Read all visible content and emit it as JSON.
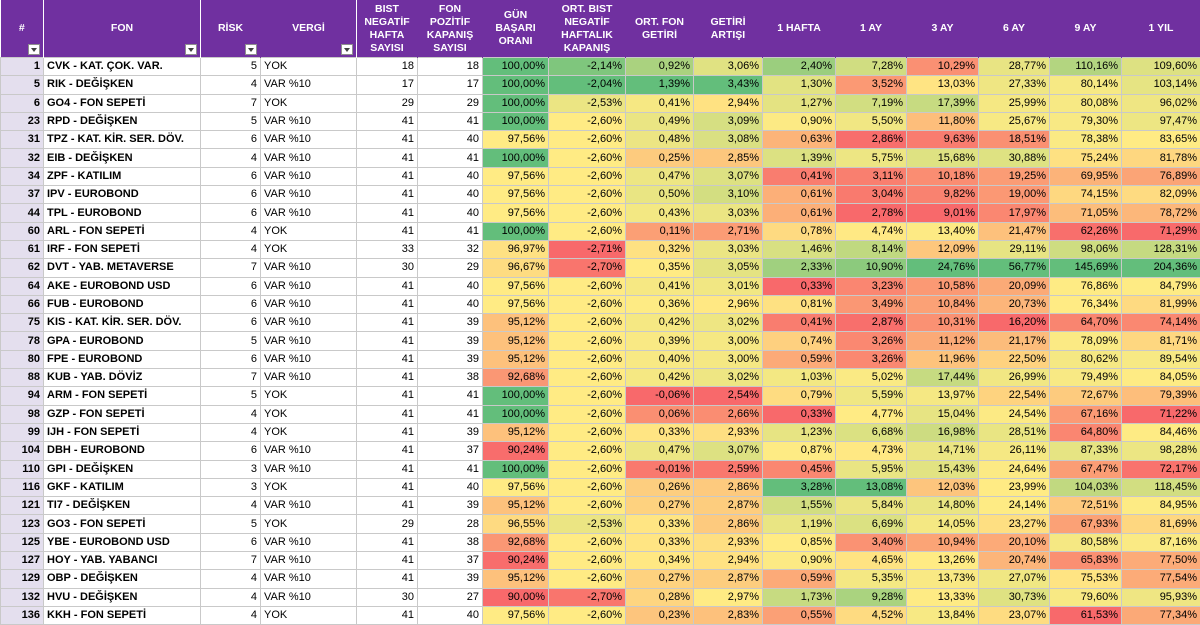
{
  "headers": {
    "idx": "#",
    "fon": "FON",
    "risk": "RİSK",
    "vergi": "VERGİ",
    "bist_neg": "BIST NEGATİF HAFTA SAYISI",
    "fon_poz": "FON POZİTİF KAPANIŞ SAYISI",
    "gun_basari": "GÜN BAŞARI ORANI",
    "ort_bist": "ORT. BIST NEGATİF HAFTALIK KAPANIŞ",
    "ort_fon": "ORT. FON GETİRİ",
    "getiri_artisi": "GETİRİ ARTIŞI",
    "h1": "1 HAFTA",
    "a1": "1 AY",
    "a3": "3 AY",
    "a6": "6 AY",
    "a9": "9 AY",
    "y1": "1 YIL"
  },
  "colors": {
    "header_bg": "#7030a0",
    "index_bg": "#e4dfee",
    "scale_low": "#f8696b",
    "scale_mid": "#ffeb84",
    "scale_high": "#63be7b"
  },
  "rows": [
    {
      "idx": "1",
      "fon": "CVK - KAT. ÇOK. VAR.",
      "risk": "5",
      "vergi": "YOK",
      "bist_neg": "18",
      "fon_poz": "18",
      "gun_basari": "100,00%",
      "ort_bist": "-2,14%",
      "ort_fon": "0,92%",
      "getiri_artisi": "3,06%",
      "h1": "2,40%",
      "a1": "7,28%",
      "a3": "10,29%",
      "a6": "28,77%",
      "a9": "110,16%",
      "y1": "109,60%"
    },
    {
      "idx": "5",
      "fon": "RIK - DEĞİŞKEN",
      "risk": "4",
      "vergi": "VAR %10",
      "bist_neg": "17",
      "fon_poz": "17",
      "gun_basari": "100,00%",
      "ort_bist": "-2,04%",
      "ort_fon": "1,39%",
      "getiri_artisi": "3,43%",
      "h1": "1,30%",
      "a1": "3,52%",
      "a3": "13,03%",
      "a6": "27,33%",
      "a9": "80,14%",
      "y1": "103,14%"
    },
    {
      "idx": "6",
      "fon": "GO4 - FON SEPETİ",
      "risk": "7",
      "vergi": "YOK",
      "bist_neg": "29",
      "fon_poz": "29",
      "gun_basari": "100,00%",
      "ort_bist": "-2,53%",
      "ort_fon": "0,41%",
      "getiri_artisi": "2,94%",
      "h1": "1,27%",
      "a1": "7,19%",
      "a3": "17,39%",
      "a6": "25,99%",
      "a9": "80,08%",
      "y1": "96,02%"
    },
    {
      "idx": "23",
      "fon": "RPD - DEĞİŞKEN",
      "risk": "5",
      "vergi": "VAR %10",
      "bist_neg": "41",
      "fon_poz": "41",
      "gun_basari": "100,00%",
      "ort_bist": "-2,60%",
      "ort_fon": "0,49%",
      "getiri_artisi": "3,09%",
      "h1": "0,90%",
      "a1": "5,50%",
      "a3": "11,80%",
      "a6": "25,67%",
      "a9": "79,30%",
      "y1": "97,47%"
    },
    {
      "idx": "31",
      "fon": "TPZ - KAT. KİR. SER. DÖV.",
      "risk": "6",
      "vergi": "VAR %10",
      "bist_neg": "41",
      "fon_poz": "40",
      "gun_basari": "97,56%",
      "ort_bist": "-2,60%",
      "ort_fon": "0,48%",
      "getiri_artisi": "3,08%",
      "h1": "0,63%",
      "a1": "2,86%",
      "a3": "9,63%",
      "a6": "18,51%",
      "a9": "78,38%",
      "y1": "83,65%"
    },
    {
      "idx": "32",
      "fon": "EIB - DEĞİŞKEN",
      "risk": "4",
      "vergi": "VAR %10",
      "bist_neg": "41",
      "fon_poz": "41",
      "gun_basari": "100,00%",
      "ort_bist": "-2,60%",
      "ort_fon": "0,25%",
      "getiri_artisi": "2,85%",
      "h1": "1,39%",
      "a1": "5,75%",
      "a3": "15,68%",
      "a6": "30,88%",
      "a9": "75,24%",
      "y1": "81,78%"
    },
    {
      "idx": "34",
      "fon": "ZPF - KATILIM",
      "risk": "6",
      "vergi": "VAR %10",
      "bist_neg": "41",
      "fon_poz": "40",
      "gun_basari": "97,56%",
      "ort_bist": "-2,60%",
      "ort_fon": "0,47%",
      "getiri_artisi": "3,07%",
      "h1": "0,41%",
      "a1": "3,11%",
      "a3": "10,18%",
      "a6": "19,25%",
      "a9": "69,95%",
      "y1": "76,89%"
    },
    {
      "idx": "37",
      "fon": "IPV - EUROBOND",
      "risk": "6",
      "vergi": "VAR %10",
      "bist_neg": "41",
      "fon_poz": "40",
      "gun_basari": "97,56%",
      "ort_bist": "-2,60%",
      "ort_fon": "0,50%",
      "getiri_artisi": "3,10%",
      "h1": "0,61%",
      "a1": "3,04%",
      "a3": "9,82%",
      "a6": "19,00%",
      "a9": "74,15%",
      "y1": "82,09%"
    },
    {
      "idx": "44",
      "fon": "TPL - EUROBOND",
      "risk": "6",
      "vergi": "VAR %10",
      "bist_neg": "41",
      "fon_poz": "40",
      "gun_basari": "97,56%",
      "ort_bist": "-2,60%",
      "ort_fon": "0,43%",
      "getiri_artisi": "3,03%",
      "h1": "0,61%",
      "a1": "2,78%",
      "a3": "9,01%",
      "a6": "17,97%",
      "a9": "71,05%",
      "y1": "78,72%"
    },
    {
      "idx": "60",
      "fon": "ARL - FON SEPETİ",
      "risk": "4",
      "vergi": "YOK",
      "bist_neg": "41",
      "fon_poz": "41",
      "gun_basari": "100,00%",
      "ort_bist": "-2,60%",
      "ort_fon": "0,11%",
      "getiri_artisi": "2,71%",
      "h1": "0,78%",
      "a1": "4,74%",
      "a3": "13,40%",
      "a6": "21,47%",
      "a9": "62,26%",
      "y1": "71,29%"
    },
    {
      "idx": "61",
      "fon": "IRF - FON SEPETİ",
      "risk": "4",
      "vergi": "YOK",
      "bist_neg": "33",
      "fon_poz": "32",
      "gun_basari": "96,97%",
      "ort_bist": "-2,71%",
      "ort_fon": "0,32%",
      "getiri_artisi": "3,03%",
      "h1": "1,46%",
      "a1": "8,14%",
      "a3": "12,09%",
      "a6": "29,11%",
      "a9": "98,06%",
      "y1": "128,31%"
    },
    {
      "idx": "62",
      "fon": "DVT - YAB. METAVERSE",
      "risk": "7",
      "vergi": "VAR %10",
      "bist_neg": "30",
      "fon_poz": "29",
      "gun_basari": "96,67%",
      "ort_bist": "-2,70%",
      "ort_fon": "0,35%",
      "getiri_artisi": "3,05%",
      "h1": "2,33%",
      "a1": "10,90%",
      "a3": "24,76%",
      "a6": "56,77%",
      "a9": "145,69%",
      "y1": "204,36%"
    },
    {
      "idx": "64",
      "fon": "AKE - EUROBOND USD",
      "risk": "6",
      "vergi": "VAR %10",
      "bist_neg": "41",
      "fon_poz": "40",
      "gun_basari": "97,56%",
      "ort_bist": "-2,60%",
      "ort_fon": "0,41%",
      "getiri_artisi": "3,01%",
      "h1": "0,33%",
      "a1": "3,23%",
      "a3": "10,58%",
      "a6": "20,09%",
      "a9": "76,86%",
      "y1": "84,79%"
    },
    {
      "idx": "66",
      "fon": "FUB - EUROBOND",
      "risk": "6",
      "vergi": "VAR %10",
      "bist_neg": "41",
      "fon_poz": "40",
      "gun_basari": "97,56%",
      "ort_bist": "-2,60%",
      "ort_fon": "0,36%",
      "getiri_artisi": "2,96%",
      "h1": "0,81%",
      "a1": "3,49%",
      "a3": "10,84%",
      "a6": "20,73%",
      "a9": "76,34%",
      "y1": "81,99%"
    },
    {
      "idx": "75",
      "fon": "KIS - KAT. KİR. SER. DÖV.",
      "risk": "6",
      "vergi": "VAR %10",
      "bist_neg": "41",
      "fon_poz": "39",
      "gun_basari": "95,12%",
      "ort_bist": "-2,60%",
      "ort_fon": "0,42%",
      "getiri_artisi": "3,02%",
      "h1": "0,41%",
      "a1": "2,87%",
      "a3": "10,31%",
      "a6": "16,20%",
      "a9": "64,70%",
      "y1": "74,14%"
    },
    {
      "idx": "78",
      "fon": "GPA - EUROBOND",
      "risk": "5",
      "vergi": "VAR %10",
      "bist_neg": "41",
      "fon_poz": "39",
      "gun_basari": "95,12%",
      "ort_bist": "-2,60%",
      "ort_fon": "0,39%",
      "getiri_artisi": "3,00%",
      "h1": "0,74%",
      "a1": "3,26%",
      "a3": "11,12%",
      "a6": "21,17%",
      "a9": "78,09%",
      "y1": "81,71%"
    },
    {
      "idx": "80",
      "fon": "FPE - EUROBOND",
      "risk": "6",
      "vergi": "VAR %10",
      "bist_neg": "41",
      "fon_poz": "39",
      "gun_basari": "95,12%",
      "ort_bist": "-2,60%",
      "ort_fon": "0,40%",
      "getiri_artisi": "3,00%",
      "h1": "0,59%",
      "a1": "3,26%",
      "a3": "11,96%",
      "a6": "22,50%",
      "a9": "80,62%",
      "y1": "89,54%"
    },
    {
      "idx": "88",
      "fon": "KUB - YAB. DÖVİZ",
      "risk": "7",
      "vergi": "VAR %10",
      "bist_neg": "41",
      "fon_poz": "38",
      "gun_basari": "92,68%",
      "ort_bist": "-2,60%",
      "ort_fon": "0,42%",
      "getiri_artisi": "3,02%",
      "h1": "1,03%",
      "a1": "5,02%",
      "a3": "17,44%",
      "a6": "26,99%",
      "a9": "79,49%",
      "y1": "84,05%"
    },
    {
      "idx": "94",
      "fon": "ARM - FON SEPETİ",
      "risk": "5",
      "vergi": "YOK",
      "bist_neg": "41",
      "fon_poz": "41",
      "gun_basari": "100,00%",
      "ort_bist": "-2,60%",
      "ort_fon": "-0,06%",
      "getiri_artisi": "2,54%",
      "h1": "0,79%",
      "a1": "5,59%",
      "a3": "13,97%",
      "a6": "22,54%",
      "a9": "72,67%",
      "y1": "79,39%"
    },
    {
      "idx": "98",
      "fon": "GZP - FON SEPETİ",
      "risk": "4",
      "vergi": "YOK",
      "bist_neg": "41",
      "fon_poz": "41",
      "gun_basari": "100,00%",
      "ort_bist": "-2,60%",
      "ort_fon": "0,06%",
      "getiri_artisi": "2,66%",
      "h1": "0,33%",
      "a1": "4,77%",
      "a3": "15,04%",
      "a6": "24,54%",
      "a9": "67,16%",
      "y1": "71,22%"
    },
    {
      "idx": "99",
      "fon": "IJH - FON SEPETİ",
      "risk": "4",
      "vergi": "YOK",
      "bist_neg": "41",
      "fon_poz": "39",
      "gun_basari": "95,12%",
      "ort_bist": "-2,60%",
      "ort_fon": "0,33%",
      "getiri_artisi": "2,93%",
      "h1": "1,23%",
      "a1": "6,68%",
      "a3": "16,98%",
      "a6": "28,51%",
      "a9": "64,80%",
      "y1": "84,46%"
    },
    {
      "idx": "104",
      "fon": "DBH - EUROBOND",
      "risk": "6",
      "vergi": "VAR %10",
      "bist_neg": "41",
      "fon_poz": "37",
      "gun_basari": "90,24%",
      "ort_bist": "-2,60%",
      "ort_fon": "0,47%",
      "getiri_artisi": "3,07%",
      "h1": "0,87%",
      "a1": "4,73%",
      "a3": "14,71%",
      "a6": "26,11%",
      "a9": "87,33%",
      "y1": "98,28%"
    },
    {
      "idx": "110",
      "fon": "GPI - DEĞİŞKEN",
      "risk": "3",
      "vergi": "VAR %10",
      "bist_neg": "41",
      "fon_poz": "41",
      "gun_basari": "100,00%",
      "ort_bist": "-2,60%",
      "ort_fon": "-0,01%",
      "getiri_artisi": "2,59%",
      "h1": "0,45%",
      "a1": "5,95%",
      "a3": "15,43%",
      "a6": "24,64%",
      "a9": "67,47%",
      "y1": "72,17%"
    },
    {
      "idx": "116",
      "fon": "GKF - KATILIM",
      "risk": "3",
      "vergi": "YOK",
      "bist_neg": "41",
      "fon_poz": "40",
      "gun_basari": "97,56%",
      "ort_bist": "-2,60%",
      "ort_fon": "0,26%",
      "getiri_artisi": "2,86%",
      "h1": "3,28%",
      "a1": "13,08%",
      "a3": "12,03%",
      "a6": "23,99%",
      "a9": "104,03%",
      "y1": "118,45%"
    },
    {
      "idx": "121",
      "fon": "TI7 - DEĞİŞKEN",
      "risk": "4",
      "vergi": "VAR %10",
      "bist_neg": "41",
      "fon_poz": "39",
      "gun_basari": "95,12%",
      "ort_bist": "-2,60%",
      "ort_fon": "0,27%",
      "getiri_artisi": "2,87%",
      "h1": "1,55%",
      "a1": "5,84%",
      "a3": "14,80%",
      "a6": "24,14%",
      "a9": "72,51%",
      "y1": "84,95%"
    },
    {
      "idx": "123",
      "fon": "GO3 - FON SEPETİ",
      "risk": "5",
      "vergi": "YOK",
      "bist_neg": "29",
      "fon_poz": "28",
      "gun_basari": "96,55%",
      "ort_bist": "-2,53%",
      "ort_fon": "0,33%",
      "getiri_artisi": "2,86%",
      "h1": "1,19%",
      "a1": "6,69%",
      "a3": "14,05%",
      "a6": "23,27%",
      "a9": "67,93%",
      "y1": "81,69%"
    },
    {
      "idx": "125",
      "fon": "YBE - EUROBOND USD",
      "risk": "6",
      "vergi": "VAR %10",
      "bist_neg": "41",
      "fon_poz": "38",
      "gun_basari": "92,68%",
      "ort_bist": "-2,60%",
      "ort_fon": "0,33%",
      "getiri_artisi": "2,93%",
      "h1": "0,85%",
      "a1": "3,40%",
      "a3": "10,94%",
      "a6": "20,10%",
      "a9": "80,58%",
      "y1": "87,16%"
    },
    {
      "idx": "127",
      "fon": "HOY - YAB. YABANCI",
      "risk": "7",
      "vergi": "VAR %10",
      "bist_neg": "41",
      "fon_poz": "37",
      "gun_basari": "90,24%",
      "ort_bist": "-2,60%",
      "ort_fon": "0,34%",
      "getiri_artisi": "2,94%",
      "h1": "0,90%",
      "a1": "4,65%",
      "a3": "13,26%",
      "a6": "20,74%",
      "a9": "65,83%",
      "y1": "77,50%"
    },
    {
      "idx": "129",
      "fon": "OBP - DEĞİŞKEN",
      "risk": "4",
      "vergi": "VAR %10",
      "bist_neg": "41",
      "fon_poz": "39",
      "gun_basari": "95,12%",
      "ort_bist": "-2,60%",
      "ort_fon": "0,27%",
      "getiri_artisi": "2,87%",
      "h1": "0,59%",
      "a1": "5,35%",
      "a3": "13,73%",
      "a6": "27,07%",
      "a9": "75,53%",
      "y1": "77,54%"
    },
    {
      "idx": "132",
      "fon": "HVU - DEĞİŞKEN",
      "risk": "4",
      "vergi": "VAR %10",
      "bist_neg": "30",
      "fon_poz": "27",
      "gun_basari": "90,00%",
      "ort_bist": "-2,70%",
      "ort_fon": "0,28%",
      "getiri_artisi": "2,97%",
      "h1": "1,73%",
      "a1": "9,28%",
      "a3": "13,33%",
      "a6": "30,73%",
      "a9": "79,60%",
      "y1": "95,93%"
    },
    {
      "idx": "136",
      "fon": "KKH - FON SEPETİ",
      "risk": "4",
      "vergi": "YOK",
      "bist_neg": "41",
      "fon_poz": "40",
      "gun_basari": "97,56%",
      "ort_bist": "-2,60%",
      "ort_fon": "0,23%",
      "getiri_artisi": "2,83%",
      "h1": "0,55%",
      "a1": "4,52%",
      "a3": "13,84%",
      "a6": "23,07%",
      "a9": "61,53%",
      "y1": "77,34%"
    }
  ]
}
